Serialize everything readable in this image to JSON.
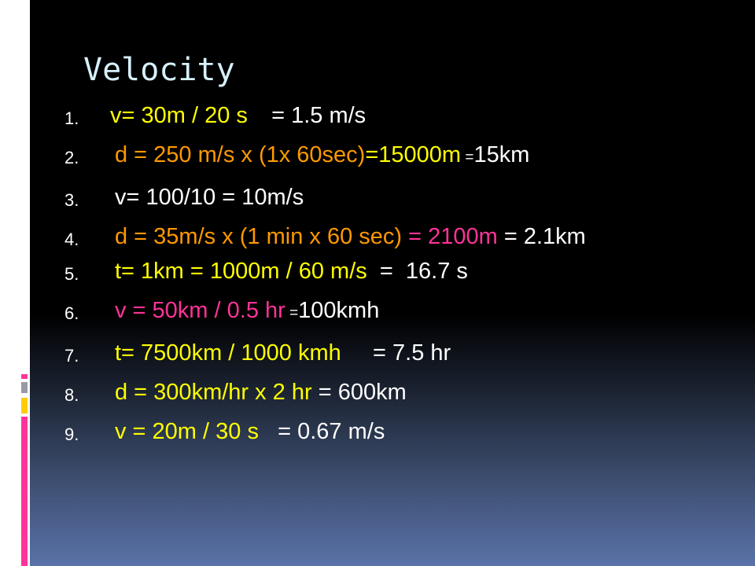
{
  "slide": {
    "title": "Velocity",
    "items": [
      {
        "number": "1.",
        "parts": [
          {
            "text": "v= 30m / 20 s",
            "color": "#ffff00"
          },
          {
            "text": "   = 1.5 m/s",
            "color": "#ffffff"
          }
        ]
      },
      {
        "number": "2.",
        "parts": [
          {
            "text": "d = 250 m/s x (1x 60sec)",
            "color": "#ff9900"
          },
          {
            "text": "=15000m",
            "color": "#ffff00"
          },
          {
            "text": " =",
            "color": "#ffffff"
          },
          {
            "text": "15km",
            "color": "#ffffff"
          }
        ]
      },
      {
        "number": "3.",
        "parts": [
          {
            "text": "v= 100/10 = 10m/s",
            "color": "#ffffff"
          }
        ]
      },
      {
        "number": "4.",
        "parts": [
          {
            "text": "d = 35m/s x (1 min x 60 sec)",
            "color": "#ff9900"
          },
          {
            "text": " = 2100m",
            "color": "#ff3399"
          },
          {
            "text": " = 2.1km",
            "color": "#ffffff"
          }
        ]
      },
      {
        "number": "5.",
        "parts": [
          {
            "text": "t= 1km = 1000m / 60 m/s",
            "color": "#ffff00"
          },
          {
            "text": "  =  16.7 s",
            "color": "#ffffff"
          }
        ]
      },
      {
        "number": "6.",
        "parts": [
          {
            "text": "v = 50km / 0.5 hr",
            "color": "#ff3399"
          },
          {
            "text": " =",
            "color": "#ffffff"
          },
          {
            "text": "100kmh",
            "color": "#ffffff"
          }
        ]
      },
      {
        "number": "7.",
        "parts": [
          {
            "text": "t= 7500km / 1000 kmh",
            "color": "#ffff00"
          },
          {
            "text": "     = 7.5 hr",
            "color": "#ffffff"
          }
        ]
      },
      {
        "number": "8.",
        "parts": [
          {
            "text": "d = 300km/hr x 2 hr",
            "color": "#ffff00"
          },
          {
            "text": " = 600km",
            "color": "#ffffff"
          }
        ]
      },
      {
        "number": "9.",
        "parts": [
          {
            "text": "v = 20m / 30 s",
            "color": "#ffff00"
          },
          {
            "text": "   = 0.67 m/s",
            "color": "#ffffff"
          }
        ]
      }
    ]
  }
}
